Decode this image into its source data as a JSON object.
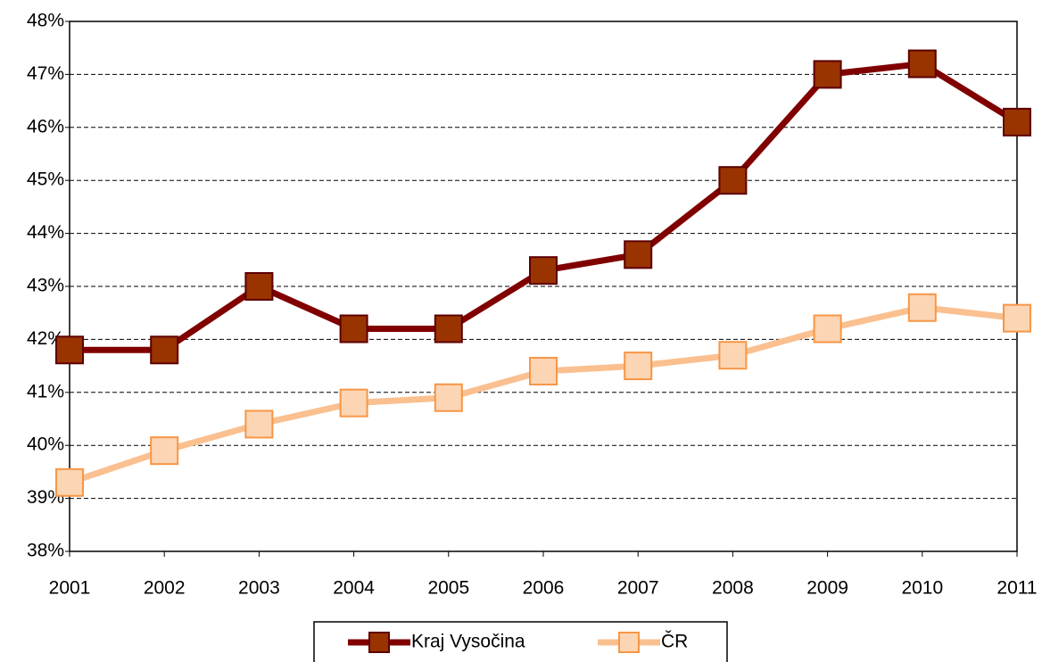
{
  "chart_data": {
    "type": "line",
    "categories": [
      "2001",
      "2002",
      "2003",
      "2004",
      "2005",
      "2006",
      "2007",
      "2008",
      "2009",
      "2010",
      "2011"
    ],
    "series": [
      {
        "name": "Kraj Vysočina",
        "color": "#800000",
        "marker_fill": "#993300",
        "marker_edge": "#5c0000",
        "values": [
          41.8,
          41.8,
          43.0,
          42.2,
          42.2,
          43.3,
          43.6,
          45.0,
          47.0,
          47.2,
          46.1
        ]
      },
      {
        "name": "ČR",
        "color": "#fac090",
        "marker_fill": "#fcd5b4",
        "marker_edge": "#f79646",
        "values": [
          39.3,
          39.9,
          40.4,
          40.8,
          40.9,
          41.4,
          41.5,
          41.7,
          42.2,
          42.6,
          42.4
        ]
      }
    ],
    "ylim": [
      38,
      48
    ],
    "yticks": [
      {
        "value": 38,
        "label": "38%"
      },
      {
        "value": 39,
        "label": "39%"
      },
      {
        "value": 40,
        "label": "40%"
      },
      {
        "value": 41,
        "label": "41%"
      },
      {
        "value": 42,
        "label": "42%"
      },
      {
        "value": 43,
        "label": "43%"
      },
      {
        "value": 44,
        "label": "44%"
      },
      {
        "value": 45,
        "label": "45%"
      },
      {
        "value": 46,
        "label": "46%"
      },
      {
        "value": 47,
        "label": "47%"
      },
      {
        "value": 48,
        "label": "48%"
      }
    ],
    "grid": true,
    "legend": "bottom"
  }
}
